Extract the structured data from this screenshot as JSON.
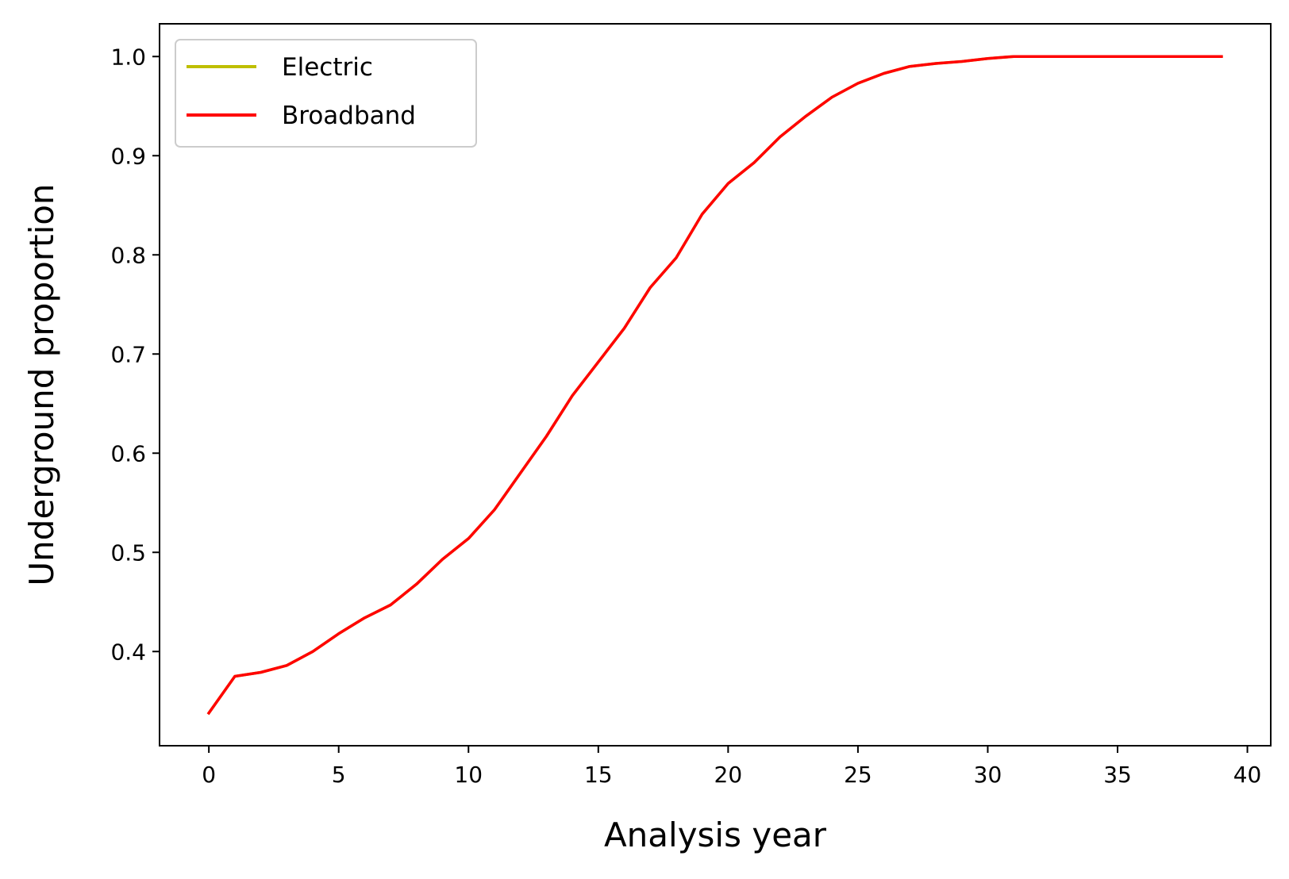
{
  "chart_data": {
    "type": "line",
    "title": "",
    "xlabel": "Analysis year",
    "ylabel": "Underground proportion",
    "xlim": [
      -1.9,
      40.9
    ],
    "ylim": [
      0.305,
      1.033
    ],
    "xticks": [
      0,
      5,
      10,
      15,
      20,
      25,
      30,
      35,
      40
    ],
    "yticks": [
      0.4,
      0.5,
      0.6,
      0.7,
      0.8,
      0.9,
      1.0
    ],
    "xtick_labels": [
      "0",
      "5",
      "10",
      "15",
      "20",
      "25",
      "30",
      "35",
      "40"
    ],
    "ytick_labels": [
      "0.4",
      "0.5",
      "0.6",
      "0.7",
      "0.8",
      "0.9",
      "1.0"
    ],
    "grid": false,
    "legend_position": "upper-left",
    "x": [
      0,
      1,
      2,
      3,
      4,
      5,
      6,
      7,
      8,
      9,
      10,
      11,
      12,
      13,
      14,
      15,
      16,
      17,
      18,
      19,
      20,
      21,
      22,
      23,
      24,
      25,
      26,
      27,
      28,
      29,
      30,
      31,
      32,
      33,
      34,
      35,
      36,
      37,
      38,
      39
    ],
    "series": [
      {
        "name": "Electric",
        "color": "#bfbf00",
        "values": [
          0.338,
          0.375,
          0.379,
          0.386,
          0.4,
          0.418,
          0.434,
          0.447,
          0.468,
          0.493,
          0.514,
          0.543,
          0.58,
          0.617,
          0.658,
          0.692,
          0.726,
          0.767,
          0.797,
          0.841,
          0.872,
          0.893,
          0.919,
          0.94,
          0.959,
          0.973,
          0.983,
          0.99,
          0.993,
          0.995,
          0.998,
          1.0,
          1.0,
          1.0,
          1.0,
          1.0,
          1.0,
          1.0,
          1.0,
          1.0
        ]
      },
      {
        "name": "Broadband",
        "color": "#ff0000",
        "values": [
          0.338,
          0.375,
          0.379,
          0.386,
          0.4,
          0.418,
          0.434,
          0.447,
          0.468,
          0.493,
          0.514,
          0.543,
          0.58,
          0.617,
          0.658,
          0.692,
          0.726,
          0.767,
          0.797,
          0.841,
          0.872,
          0.893,
          0.919,
          0.94,
          0.959,
          0.973,
          0.983,
          0.99,
          0.993,
          0.995,
          0.998,
          1.0,
          1.0,
          1.0,
          1.0,
          1.0,
          1.0,
          1.0,
          1.0,
          1.0
        ]
      }
    ]
  }
}
